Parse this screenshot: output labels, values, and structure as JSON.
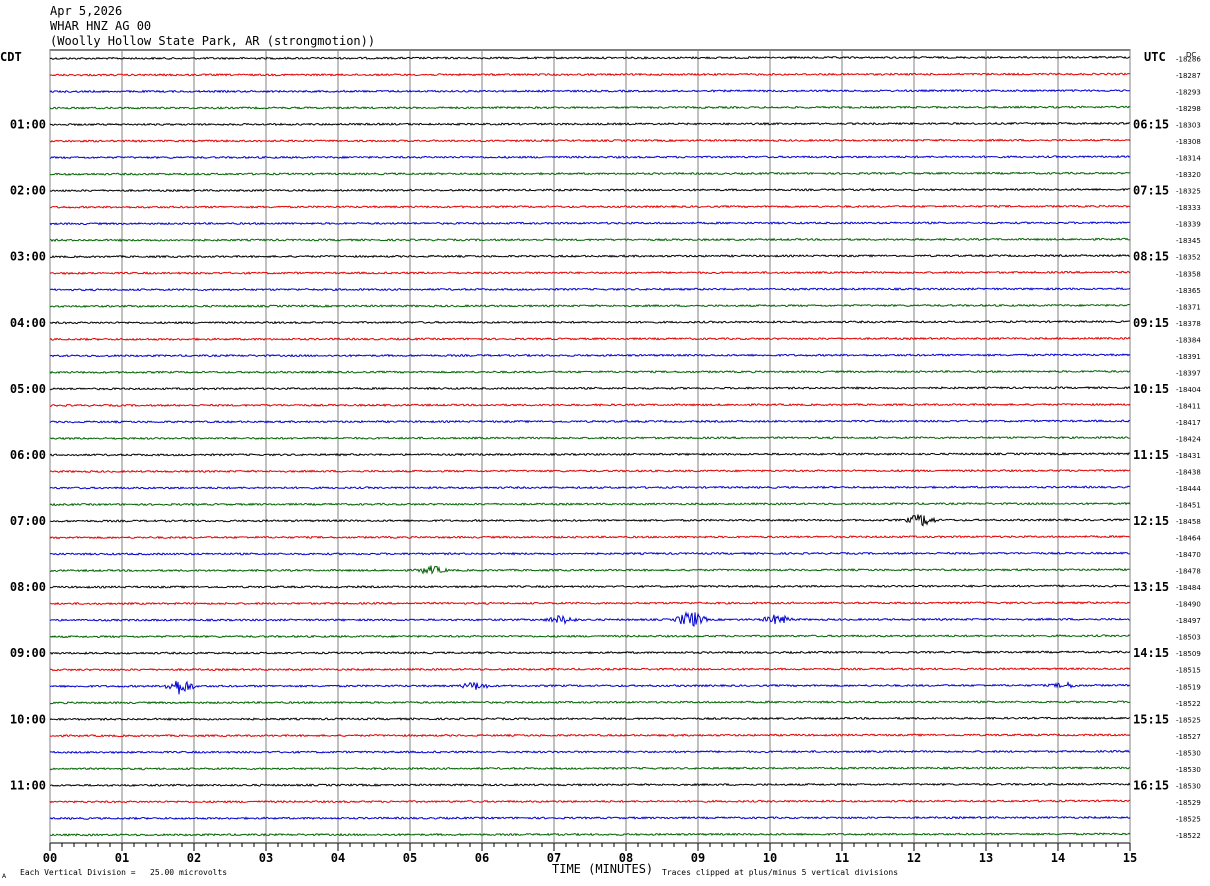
{
  "header": {
    "date": "Apr 5,2026",
    "station": "WHAR HNZ AG 00",
    "location": "(Woolly Hollow State Park, AR (strongmotion))"
  },
  "chart_data": {
    "type": "line",
    "title": "WHAR HNZ AG 00",
    "xlabel": "TIME (MINUTES)",
    "xlim": [
      0,
      15
    ],
    "x_ticks": [
      "00",
      "01",
      "02",
      "03",
      "04",
      "05",
      "06",
      "07",
      "08",
      "09",
      "10",
      "11",
      "12",
      "13",
      "14",
      "15"
    ],
    "left_axis_label": "CDT",
    "right_axis_label": "UTC",
    "dc_label": "DC",
    "trace_count": 48,
    "trace_interval_minutes": 15,
    "trace_colors": [
      "#000000",
      "#e00000",
      "#0000d0",
      "#006400"
    ],
    "left_hour_labels": [
      "01:00",
      "02:00",
      "03:00",
      "04:00",
      "05:00",
      "06:00",
      "07:00",
      "08:00",
      "09:00",
      "10:00",
      "11:00"
    ],
    "right_hour_labels": [
      "06:15",
      "07:15",
      "08:15",
      "09:15",
      "10:15",
      "11:15",
      "12:15",
      "13:15",
      "14:15",
      "15:15",
      "16:15"
    ],
    "dc_offsets": [
      "-18286",
      "-18287",
      "-18293",
      "-18298",
      "-18303",
      "-18308",
      "-18314",
      "-18320",
      "-18325",
      "-18333",
      "-18339",
      "-18345",
      "-18352",
      "-18358",
      "-18365",
      "-18371",
      "-18378",
      "-18384",
      "-18391",
      "-18397",
      "-18404",
      "-18411",
      "-18417",
      "-18424",
      "-18431",
      "-18438",
      "-18444",
      "-18451",
      "-18458",
      "-18464",
      "-18470",
      "-18478",
      "-18484",
      "-18490",
      "-18497",
      "-18503",
      "-18509",
      "-18515",
      "-18519",
      "-18522",
      "-18525",
      "-18527",
      "-18530",
      "-18530",
      "-18530",
      "-18529",
      "-18525",
      "-18522"
    ],
    "events": [
      {
        "trace": 28,
        "minute": 12.1,
        "amplitude": 1.6
      },
      {
        "trace": 31,
        "minute": 5.3,
        "amplitude": 1.0
      },
      {
        "trace": 34,
        "minute": 7.1,
        "amplitude": 1.0
      },
      {
        "trace": 34,
        "minute": 8.9,
        "amplitude": 2.2
      },
      {
        "trace": 34,
        "minute": 10.1,
        "amplitude": 1.2
      },
      {
        "trace": 38,
        "minute": 1.8,
        "amplitude": 2.0
      },
      {
        "trace": 38,
        "minute": 5.9,
        "amplitude": 0.9
      },
      {
        "trace": 38,
        "minute": 14.1,
        "amplitude": 0.6
      }
    ],
    "footer_left": "Each Vertical Division =   25.00 microvolts",
    "footer_right": "Traces clipped at plus/minus 5 vertical divisions",
    "corner_mark": "A"
  }
}
